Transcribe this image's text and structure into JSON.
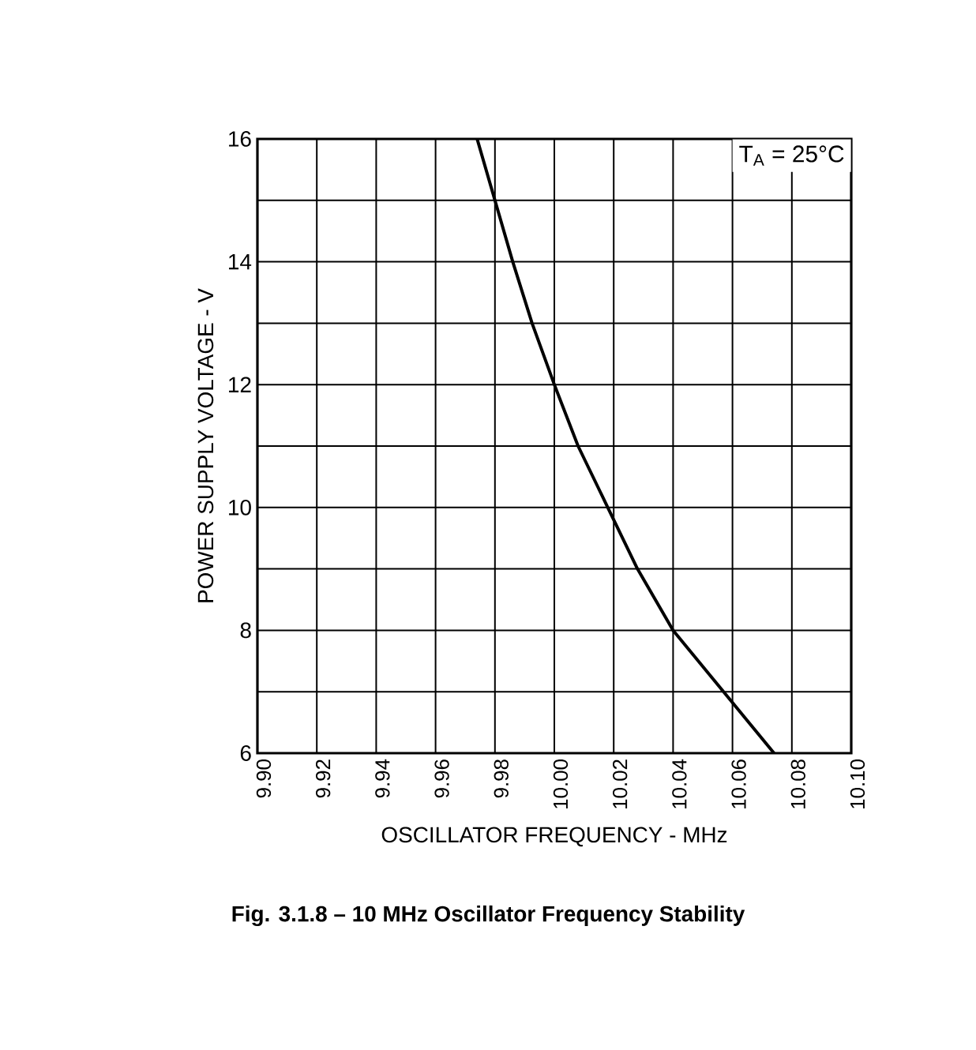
{
  "chart_data": {
    "type": "line",
    "xlabel": "OSCILLATOR FREQUENCY - MHz",
    "ylabel": "POWER SUPPLY VOLTAGE - V",
    "annotations": [
      "T$_{A}$ = 25°C",
      "Fig. 3.1.8 – 10 MHz Oscillator Frequency Stability"
    ],
    "x": [
      9.974,
      9.98,
      9.986,
      9.9925,
      10.0,
      10.008,
      10.018,
      10.028,
      10.04,
      10.057,
      10.074
    ],
    "series": [
      {
        "color": "#000000",
        "values": [
          16,
          15,
          14,
          13,
          12,
          11,
          10,
          9,
          8,
          7,
          6
        ]
      }
    ],
    "xlim": [
      9.9,
      10.1
    ],
    "ylim": [
      6,
      16
    ],
    "xticks": [
      {
        "value": 9.9,
        "label": "9.90"
      },
      {
        "value": 9.92,
        "label": "9.92"
      },
      {
        "value": 9.94,
        "label": "9.94"
      },
      {
        "value": 9.96,
        "label": "9.96"
      },
      {
        "value": 9.98,
        "label": "9.98"
      },
      {
        "value": 10.0,
        "label": "10.00"
      },
      {
        "value": 10.02,
        "label": "10.02"
      },
      {
        "value": 10.04,
        "label": "10.04"
      },
      {
        "value": 10.06,
        "label": "10.06"
      },
      {
        "value": 10.08,
        "label": "10.08"
      },
      {
        "value": 10.1,
        "label": "10.10"
      }
    ],
    "yticks": [
      6,
      {
        "value": 7,
        "label": null
      },
      8,
      {
        "value": 9,
        "label": null
      },
      10,
      {
        "value": 11,
        "label": null
      },
      12,
      {
        "value": 13,
        "label": null
      },
      14,
      {
        "value": 15,
        "label": null
      },
      16
    ],
    "grid": true,
    "marker": "none",
    "line_style": "solid"
  }
}
